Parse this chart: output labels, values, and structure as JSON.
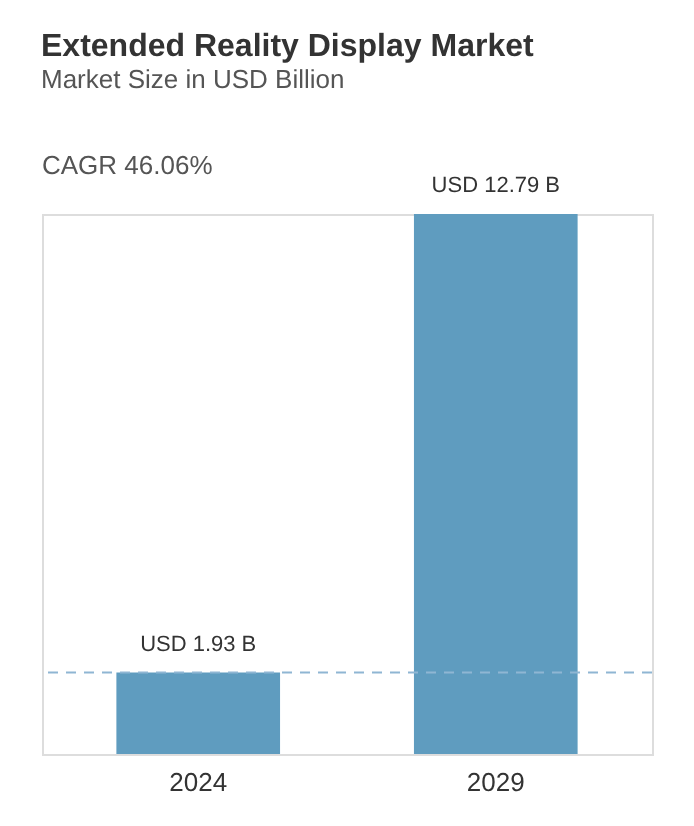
{
  "chart_data": {
    "type": "bar",
    "title": "Extended Reality Display Market",
    "subtitle": "Market Size in USD Billion",
    "annotations": [
      "CAGR 46.06%"
    ],
    "categories": [
      "2024",
      "2029"
    ],
    "values": [
      1.93,
      12.79
    ],
    "color": "#5f9cbf",
    "value_labels": [
      "USD 1.93 B",
      "USD 12.79 B"
    ],
    "ref_lines": [
      {
        "axis": "y",
        "value": 1.93,
        "color": "#8fb6d3",
        "line_style": "dashed"
      }
    ],
    "grid": false
  }
}
